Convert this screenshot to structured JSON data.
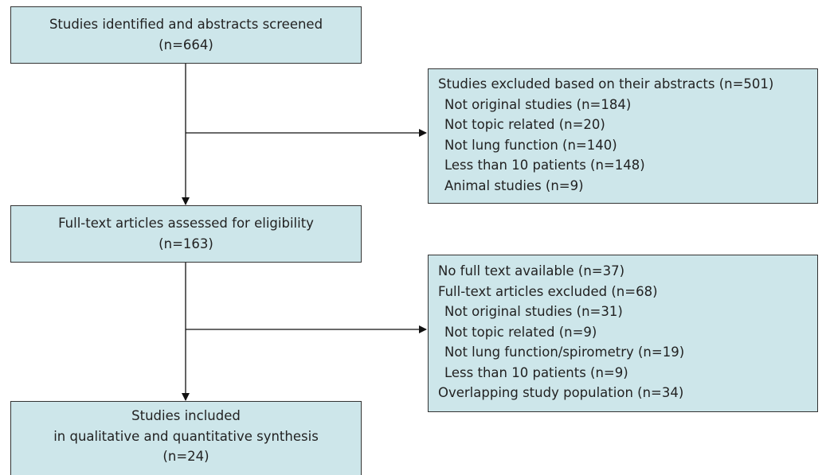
{
  "nodes": [
    {
      "lines": [
        "Studies identified and abstracts screened",
        "(n=664)"
      ]
    },
    {
      "lines": [
        "Full-text articles assessed for eligibility",
        "(n=163)"
      ]
    },
    {
      "lines": [
        "Studies included",
        "in qualitative and quantitative synthesis",
        "(n=24)"
      ]
    }
  ],
  "exclusions": [
    {
      "groups": [
        {
          "text": "Studies excluded based on their abstracts (n=501)",
          "items": [
            "Not original studies (n=184)",
            "Not topic related (n=20)",
            "Not lung function (n=140)",
            "Less than 10 patients (n=148)",
            "Animal studies (n=9)"
          ]
        }
      ]
    },
    {
      "groups": [
        {
          "text": "No full text available (n=37)"
        },
        {
          "text": "Full-text articles excluded (n=68)",
          "items": [
            "Not original studies (n=31)",
            "Not topic related (n=9)",
            "Not lung function/spirometry (n=19)",
            "Less than 10 patients (n=9)"
          ]
        },
        {
          "text": "Overlapping study population (n=34)"
        }
      ]
    }
  ]
}
